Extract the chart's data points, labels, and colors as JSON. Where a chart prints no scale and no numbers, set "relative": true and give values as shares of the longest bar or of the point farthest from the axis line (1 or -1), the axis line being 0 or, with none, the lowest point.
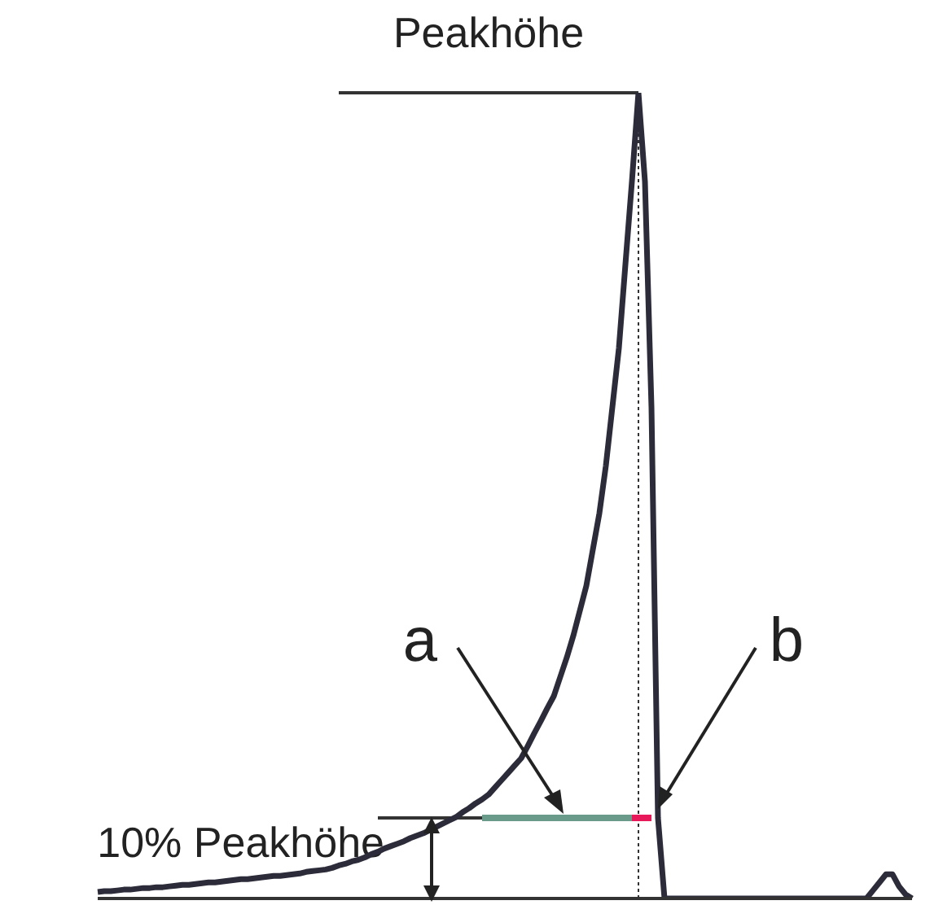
{
  "chart_data": {
    "type": "line",
    "relative": true,
    "categories": [
      null,
      null,
      null,
      null,
      null,
      null,
      null,
      null,
      null,
      null,
      null,
      null,
      null,
      null,
      null,
      null,
      null,
      null,
      null,
      null,
      null,
      null,
      null,
      null,
      null,
      null,
      null,
      null,
      null,
      null,
      null,
      null,
      null,
      null,
      null,
      null,
      null,
      null,
      null,
      null,
      null,
      null,
      null,
      null,
      null,
      null,
      null,
      null,
      null,
      null,
      null,
      null,
      null,
      null,
      null,
      null,
      null,
      null,
      null,
      null,
      null,
      null,
      null,
      null,
      null,
      null,
      null,
      null,
      null,
      null,
      null,
      null,
      null,
      null,
      null,
      null,
      null,
      null,
      null,
      null,
      null,
      null,
      null,
      null,
      null,
      null,
      null,
      null,
      null,
      null,
      null,
      null,
      null,
      null,
      null,
      null,
      null,
      null,
      null,
      null,
      null,
      null,
      null,
      null,
      null,
      null,
      null,
      null,
      null,
      null,
      null,
      null,
      null,
      null,
      null,
      null,
      null,
      null,
      null,
      null,
      null,
      null,
      null,
      null,
      null,
      null
    ],
    "series": [
      {
        "color": "#2b2b3a",
        "values": [
          0.008,
          0.009,
          0.009,
          0.01,
          0.011,
          0.011,
          0.012,
          0.013,
          0.013,
          0.014,
          0.014,
          0.015,
          0.016,
          0.017,
          0.017,
          0.018,
          0.019,
          0.02,
          0.02,
          0.021,
          0.022,
          0.023,
          0.024,
          0.024,
          0.025,
          0.026,
          0.027,
          0.028,
          0.028,
          0.029,
          0.03,
          0.031,
          0.033,
          0.034,
          0.035,
          0.036,
          0.038,
          0.041,
          0.043,
          0.046,
          0.048,
          0.051,
          0.055,
          0.058,
          0.062,
          0.065,
          0.068,
          0.071,
          0.075,
          0.078,
          0.081,
          0.085,
          0.089,
          0.093,
          0.097,
          0.101,
          0.107,
          0.112,
          0.118,
          0.123,
          0.129,
          0.138,
          0.147,
          0.156,
          0.165,
          0.174,
          0.189,
          0.205,
          0.22,
          0.236,
          0.251,
          0.275,
          0.299,
          0.326,
          0.357,
          0.388,
          0.433,
          0.478,
          0.537,
          0.61,
          0.683,
          0.787,
          0.89,
          1,
          0.89,
          0.61,
          0.1,
          0,
          0,
          0,
          0,
          0,
          0,
          0,
          0,
          0,
          0,
          0,
          0,
          0,
          0,
          0,
          0,
          0,
          0,
          0,
          0,
          0,
          0,
          0,
          0,
          0,
          0,
          0,
          0,
          0,
          0,
          0,
          0,
          0.01,
          0.02,
          0.03,
          0.03,
          0.015,
          0.005,
          0
        ]
      },
      {
        "color": "#6a9a8a",
        "values": [
          null,
          null,
          null,
          null,
          null,
          null,
          null,
          null,
          null,
          null,
          null,
          null,
          null,
          null,
          null,
          null,
          null,
          null,
          null,
          null,
          null,
          null,
          null,
          null,
          null,
          null,
          null,
          null,
          null,
          null,
          null,
          null,
          null,
          null,
          null,
          null,
          null,
          null,
          null,
          null,
          null,
          null,
          null,
          null,
          null,
          null,
          null,
          null,
          null,
          null,
          null,
          null,
          null,
          null,
          null,
          null,
          null,
          null,
          null,
          0.1,
          0.1,
          0.1,
          0.1,
          0.1,
          0.1,
          0.1,
          0.1,
          0.1,
          0.1,
          0.1,
          0.1,
          0.1,
          0.1,
          0.1,
          0.1,
          0.1,
          0.1,
          0.1,
          0.1,
          0.1,
          0.1,
          0.1,
          0.1,
          null,
          null,
          null,
          null,
          null,
          null,
          null,
          null,
          null,
          null,
          null,
          null,
          null,
          null,
          null,
          null,
          null,
          null,
          null,
          null,
          null,
          null,
          null,
          null,
          null,
          null,
          null,
          null,
          null,
          null,
          null,
          null,
          null,
          null,
          null,
          null,
          null,
          null,
          null,
          null,
          null,
          null,
          null
        ]
      },
      {
        "color": "#e8195a",
        "values": [
          null,
          null,
          null,
          null,
          null,
          null,
          null,
          null,
          null,
          null,
          null,
          null,
          null,
          null,
          null,
          null,
          null,
          null,
          null,
          null,
          null,
          null,
          null,
          null,
          null,
          null,
          null,
          null,
          null,
          null,
          null,
          null,
          null,
          null,
          null,
          null,
          null,
          null,
          null,
          null,
          null,
          null,
          null,
          null,
          null,
          null,
          null,
          null,
          null,
          null,
          null,
          null,
          null,
          null,
          null,
          null,
          null,
          null,
          null,
          null,
          null,
          null,
          null,
          null,
          null,
          null,
          null,
          null,
          null,
          null,
          null,
          null,
          null,
          null,
          null,
          null,
          null,
          null,
          null,
          null,
          null,
          null,
          0.1,
          0.1,
          0.1,
          0.1,
          null,
          null,
          null,
          null,
          null,
          null,
          null,
          null,
          null,
          null,
          null,
          null,
          null,
          null,
          null,
          null,
          null,
          null,
          null,
          null,
          null,
          null,
          null,
          null,
          null,
          null,
          null,
          null,
          null,
          null,
          null,
          null,
          null,
          null,
          null,
          null,
          null,
          null,
          null,
          null
        ]
      }
    ],
    "ref_lines": [
      {
        "axis": "y",
        "value": 1,
        "label": "Peakhöhe",
        "color": "#333333"
      },
      {
        "axis": "y",
        "value": 0.1,
        "label": "10% Peakhöhe",
        "color": "#333333"
      }
    ],
    "annotations": [
      "a",
      "b"
    ]
  }
}
